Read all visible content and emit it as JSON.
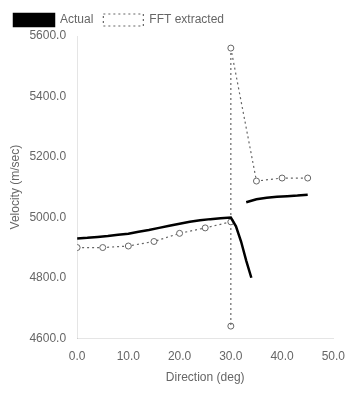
{
  "chart_data": {
    "type": "line",
    "xlabel": "Direction (deg)",
    "ylabel": "Velocity (m/sec)",
    "xlim": [
      0.0,
      50.0
    ],
    "ylim": [
      4600.0,
      5600.0
    ],
    "xticks": [
      {
        "value": 0,
        "label": "0.0"
      },
      {
        "value": 10,
        "label": "10.0"
      },
      {
        "value": 20,
        "label": "20.0"
      },
      {
        "value": 30,
        "label": "30.0"
      },
      {
        "value": 40,
        "label": "40.0"
      },
      {
        "value": 50,
        "label": "50.0"
      }
    ],
    "yticks": [
      {
        "value": 4600,
        "label": "4600.0"
      },
      {
        "value": 4800,
        "label": "4800.0"
      },
      {
        "value": 5000,
        "label": "5000.0"
      },
      {
        "value": 5200,
        "label": "5200.0"
      },
      {
        "value": 5400,
        "label": "5400.0"
      },
      {
        "value": 5600,
        "label": "5600.0"
      }
    ],
    "grid": false,
    "legend": "upper left",
    "series": [
      {
        "name": "Actual",
        "color": "#000000",
        "marker": "none",
        "line_style": "solid",
        "x": [
          0,
          2,
          4,
          6,
          8,
          10,
          12,
          14,
          16,
          18,
          20,
          22,
          24,
          26,
          28,
          30,
          31,
          32,
          33,
          34
        ],
        "values": [
          4930,
          4932,
          4935,
          4938,
          4942,
          4946,
          4952,
          4958,
          4965,
          4972,
          4979,
          4985,
          4990,
          4994,
          4997,
          4999,
          4970,
          4920,
          4857,
          4800
        ]
      },
      {
        "name": "Actual",
        "color": "#000000",
        "marker": "none",
        "line_style": "solid",
        "x": [
          33,
          35,
          37,
          39,
          41,
          43,
          45
        ],
        "values": [
          5050,
          5060,
          5065,
          5068,
          5070,
          5072,
          5075
        ]
      },
      {
        "name": "FFT extracted",
        "color": "#666666",
        "marker": "o",
        "line_style": "dotted",
        "x": [
          0,
          5,
          10,
          15,
          20,
          25,
          30
        ],
        "values": [
          4900,
          4900,
          4905,
          4920,
          4947,
          4965,
          4985
        ]
      },
      {
        "name": "FFT extracted",
        "color": "#666666",
        "marker": "o",
        "line_style": "dotted",
        "x": [
          30,
          35,
          40,
          45
        ],
        "values": [
          5560,
          5120,
          5130,
          5130
        ]
      },
      {
        "name": "FFT extracted",
        "color": "#666666",
        "marker": "none",
        "line_style": "dotted",
        "x": [
          30,
          30
        ],
        "values": [
          5560,
          4640
        ]
      },
      {
        "name": "FFT extracted",
        "color": "#666666",
        "marker": "o",
        "line_style": "none",
        "x": [
          30
        ],
        "values": [
          4640
        ]
      }
    ]
  }
}
